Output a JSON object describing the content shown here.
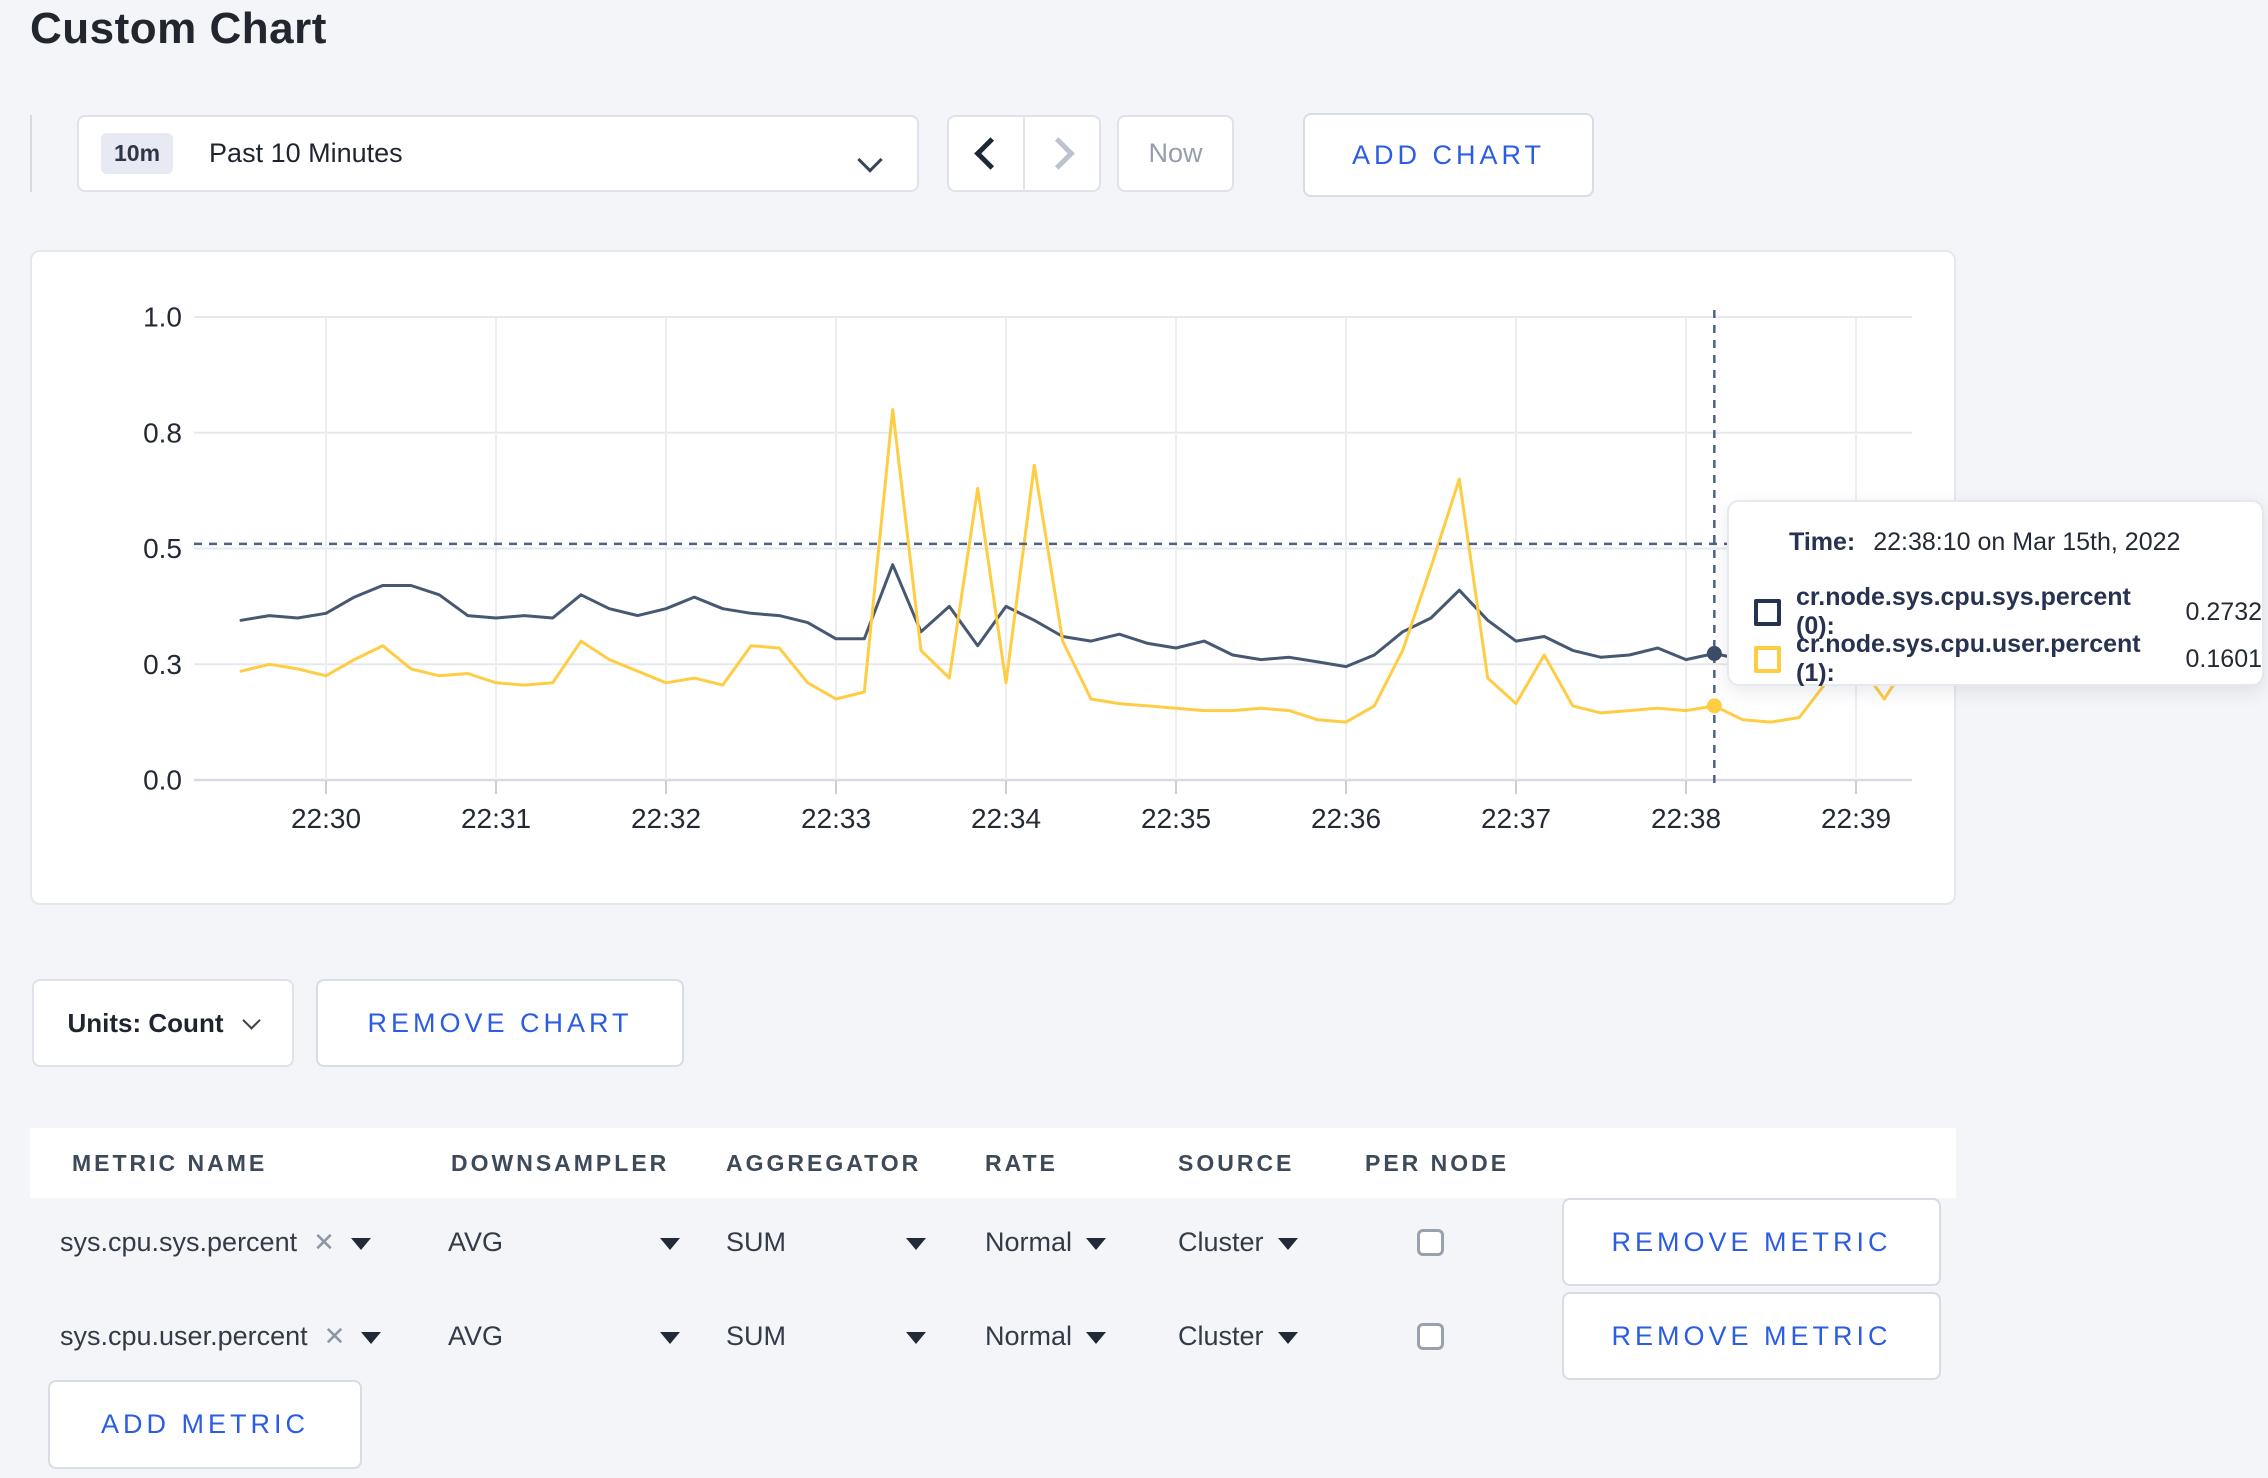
{
  "page": {
    "title": "Custom Chart"
  },
  "toolbar": {
    "time_badge": "10m",
    "time_label": "Past 10 Minutes",
    "now_label": "Now",
    "add_chart_label": "ADD CHART"
  },
  "chart_data": {
    "type": "line",
    "title": "",
    "xlabel": "",
    "ylabel": "",
    "ylim": [
      0,
      1
    ],
    "grid": true,
    "x_start_time": "22:29:30",
    "x_interval_seconds": 10,
    "x_tick_labels": [
      "22:30",
      "22:31",
      "22:32",
      "22:33",
      "22:34",
      "22:35",
      "22:36",
      "22:37",
      "22:38",
      "22:39"
    ],
    "y_ticks": [
      {
        "value": 0,
        "label": "0.0"
      },
      {
        "value": 0.25,
        "label": "0.3"
      },
      {
        "value": 0.5,
        "label": "0.5"
      },
      {
        "value": 0.75,
        "label": "0.8"
      },
      {
        "value": 1,
        "label": "1.0"
      }
    ],
    "series": [
      {
        "name": "cr.node.sys.cpu.sys.percent",
        "color": "#475872",
        "swatch_color": "#253352",
        "values": [
          0.345,
          0.355,
          0.35,
          0.36,
          0.395,
          0.42,
          0.42,
          0.4,
          0.355,
          0.35,
          0.355,
          0.35,
          0.4,
          0.37,
          0.355,
          0.37,
          0.395,
          0.37,
          0.36,
          0.355,
          0.34,
          0.305,
          0.305,
          0.465,
          0.32,
          0.375,
          0.29,
          0.375,
          0.345,
          0.31,
          0.3,
          0.315,
          0.295,
          0.285,
          0.3,
          0.27,
          0.26,
          0.265,
          0.255,
          0.245,
          0.27,
          0.32,
          0.35,
          0.41,
          0.345,
          0.3,
          0.31,
          0.28,
          0.265,
          0.27,
          0.285,
          0.26,
          0.2732,
          0.26,
          0.27,
          0.275,
          0.265,
          0.27,
          0.26,
          0.27
        ]
      },
      {
        "name": "cr.node.sys.cpu.user.percent",
        "color": "#FFCD44",
        "swatch_color": "#FFCD44",
        "values": [
          0.235,
          0.25,
          0.24,
          0.225,
          0.26,
          0.29,
          0.24,
          0.225,
          0.23,
          0.21,
          0.205,
          0.21,
          0.3,
          0.26,
          0.235,
          0.21,
          0.22,
          0.205,
          0.29,
          0.285,
          0.21,
          0.175,
          0.19,
          0.8,
          0.28,
          0.22,
          0.63,
          0.21,
          0.68,
          0.3,
          0.175,
          0.165,
          0.16,
          0.155,
          0.15,
          0.15,
          0.155,
          0.15,
          0.13,
          0.125,
          0.16,
          0.28,
          0.46,
          0.65,
          0.22,
          0.165,
          0.27,
          0.16,
          0.145,
          0.15,
          0.155,
          0.15,
          0.1601,
          0.13,
          0.125,
          0.135,
          0.215,
          0.26,
          0.175,
          0.27
        ]
      }
    ],
    "crosshair": {
      "time": "22:38:10",
      "x_index": 52,
      "y_value": 0.51
    },
    "legend_position": "tooltip"
  },
  "tooltip": {
    "time_label": "Time:",
    "time_value": "22:38:10 on Mar 15th, 2022",
    "rows": [
      {
        "label": "cr.node.sys.cpu.sys.percent (0):",
        "value": "0.2732",
        "color": "#253352"
      },
      {
        "label": "cr.node.sys.cpu.user.percent (1):",
        "value": "0.1601",
        "color": "#FFCD44"
      }
    ]
  },
  "units_bar": {
    "units_label": "Units: Count",
    "remove_chart_label": "REMOVE CHART"
  },
  "metrics_table": {
    "headers": [
      "METRIC NAME",
      "DOWNSAMPLER",
      "AGGREGATOR",
      "RATE",
      "SOURCE",
      "PER NODE"
    ],
    "rows": [
      {
        "metric": "sys.cpu.sys.percent",
        "downsampler": "AVG",
        "aggregator": "SUM",
        "rate": "Normal",
        "source": "Cluster",
        "per_node_checked": false,
        "remove_label": "REMOVE METRIC"
      },
      {
        "metric": "sys.cpu.user.percent",
        "downsampler": "AVG",
        "aggregator": "SUM",
        "rate": "Normal",
        "source": "Cluster",
        "per_node_checked": false,
        "remove_label": "REMOVE METRIC"
      }
    ],
    "add_metric_label": "ADD METRIC"
  },
  "colors": {
    "accent_blue": "#2b5ce4",
    "series_dark": "#475872",
    "series_yellow": "#FFCD44",
    "crosshair": "#4d628a"
  }
}
